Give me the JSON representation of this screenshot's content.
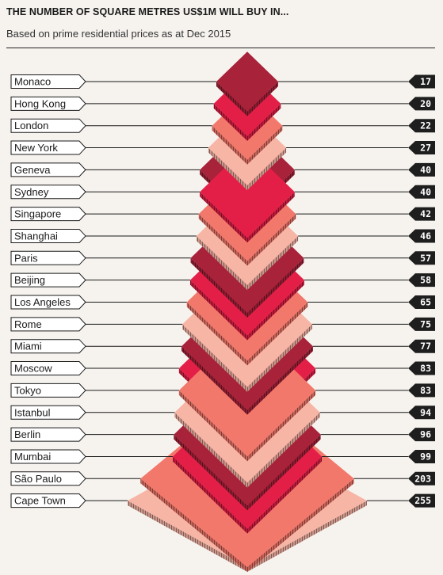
{
  "title": "THE NUMBER OF SQUARE METRES US$1M WILL BUY IN...",
  "subtitle": "Based on prime residential prices as at Dec 2015",
  "colors": {
    "background": "#f6f3ef",
    "dark_red": "#a8223a",
    "red": "#e41f47",
    "salmon": "#f2786b",
    "light_salmon": "#f7b5a6"
  },
  "chart_data": {
    "type": "pictogram-diamonds",
    "categories": [
      "Monaco",
      "Hong Kong",
      "London",
      "New York",
      "Geneva",
      "Sydney",
      "Singapore",
      "Shanghai",
      "Paris",
      "Beijing",
      "Los Angeles",
      "Rome",
      "Miami",
      "Moscow",
      "Tokyo",
      "Istanbul",
      "Berlin",
      "Mumbai",
      "São Paulo",
      "Cape Town"
    ],
    "values": [
      17,
      20,
      22,
      27,
      40,
      40,
      42,
      46,
      57,
      58,
      65,
      75,
      77,
      83,
      83,
      94,
      96,
      99,
      203,
      255
    ],
    "value_labels": [
      "17",
      "20",
      "22",
      "27",
      "40",
      "40",
      "42",
      "46",
      "57",
      "58",
      "65",
      "75",
      "77",
      "83",
      "83",
      "94",
      "96",
      "99",
      "203",
      "255"
    ],
    "color_cycle": [
      "dark_red",
      "red",
      "salmon",
      "light_salmon"
    ]
  }
}
